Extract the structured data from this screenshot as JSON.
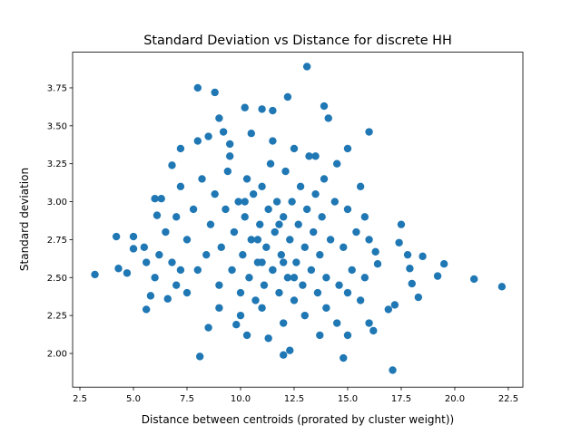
{
  "chart_data": {
    "type": "scatter",
    "title": "Standard Deviation vs Distance for discrete HH",
    "xlabel": "Distance between centroids (prorated by cluster weight))",
    "ylabel": "Standard deviation",
    "color": "#1f77b4",
    "xlim": [
      2.16,
      23.18
    ],
    "ylim": [
      1.778,
      3.985
    ],
    "xticks": [
      2.5,
      {
        "value": 5,
        "label": "5.0"
      },
      7.5,
      {
        "value": 10,
        "label": "10.0"
      },
      12.5,
      {
        "value": 15,
        "label": "15.0"
      },
      17.5,
      {
        "value": 20,
        "label": "20.0"
      },
      22.5
    ],
    "yticks": [
      {
        "value": 2,
        "label": "2.00"
      },
      2.25,
      {
        "value": 2.5,
        "label": "2.50"
      },
      2.75,
      {
        "value": 3,
        "label": "3.00"
      },
      3.25,
      {
        "value": 3.5,
        "label": "3.50"
      },
      3.75
    ],
    "x": [
      3.2,
      4.2,
      4.3,
      4.7,
      5.0,
      5.0,
      5.6,
      5.6,
      5.8,
      6.0,
      6.3,
      6.1,
      6.6,
      6.8,
      7.2,
      8.0,
      8.1,
      8.8,
      8.5,
      9.0,
      9.2,
      9.5,
      10.2,
      11.0,
      11.5,
      12.2,
      13.1,
      13.9,
      16.0,
      14.1,
      12.0,
      12.3,
      11.3,
      10.3,
      14.8,
      17.1,
      17.5,
      17.4,
      17.8,
      18.5,
      19.2,
      19.5,
      20.9,
      22.2,
      18.3,
      17.2,
      16.2,
      16.0,
      15.6,
      15.0,
      13.7,
      8.5,
      9.8,
      7.0,
      7.5,
      15.8,
      16.4,
      18.0,
      17.9,
      16.9,
      16.0,
      16.3,
      7.5,
      7.8,
      8.0,
      8.2,
      8.4,
      8.6,
      8.8,
      9.0,
      9.1,
      9.3,
      9.4,
      9.6,
      9.7,
      9.9,
      10.0,
      10.1,
      10.2,
      10.3,
      10.4,
      10.5,
      10.6,
      10.7,
      10.8,
      10.9,
      11.0,
      11.1,
      11.2,
      11.3,
      11.4,
      11.5,
      11.6,
      11.7,
      11.8,
      11.9,
      12.0,
      12.1,
      12.2,
      12.3,
      12.4,
      12.5,
      12.6,
      12.7,
      12.8,
      12.9,
      13.0,
      13.1,
      13.2,
      13.3,
      13.4,
      13.5,
      13.6,
      13.7,
      13.8,
      13.9,
      14.0,
      14.2,
      14.4,
      14.6,
      14.8,
      15.0,
      15.2,
      15.4,
      15.6,
      15.8,
      8.0,
      9.5,
      10.5,
      11.5,
      12.5,
      13.5,
      14.5,
      15.0,
      6.5,
      6.8,
      7.0,
      7.2,
      6.2,
      5.5,
      6.0,
      7.2,
      9.0,
      10.0,
      11.0,
      12.0,
      13.0,
      14.0,
      15.0,
      14.5,
      11.5,
      11.0,
      10.8,
      12.0,
      12.5,
      11.8,
      10.2
    ],
    "values": [
      2.52,
      2.77,
      2.56,
      2.53,
      2.77,
      2.69,
      2.29,
      2.6,
      2.38,
      3.02,
      3.02,
      2.91,
      2.36,
      3.24,
      3.35,
      3.75,
      1.98,
      3.72,
      3.43,
      3.55,
      3.46,
      3.38,
      3.62,
      3.61,
      3.6,
      3.69,
      3.89,
      3.63,
      3.46,
      3.55,
      1.99,
      2.02,
      2.1,
      2.12,
      1.97,
      1.89,
      2.85,
      2.73,
      2.65,
      2.64,
      2.51,
      2.59,
      2.49,
      2.44,
      2.37,
      2.32,
      2.15,
      2.2,
      2.35,
      2.12,
      2.12,
      2.17,
      2.19,
      2.45,
      2.4,
      2.9,
      2.59,
      2.46,
      2.56,
      2.29,
      2.75,
      2.67,
      2.75,
      2.95,
      2.55,
      3.15,
      2.65,
      2.85,
      3.05,
      2.45,
      2.7,
      2.95,
      3.2,
      2.55,
      2.8,
      3.0,
      2.4,
      2.65,
      2.9,
      3.15,
      2.5,
      2.75,
      3.05,
      2.35,
      2.6,
      2.85,
      3.1,
      2.45,
      2.7,
      2.95,
      3.25,
      2.55,
      2.8,
      3.0,
      2.4,
      2.65,
      2.9,
      3.2,
      2.5,
      2.75,
      3.0,
      2.35,
      2.6,
      2.85,
      3.1,
      2.45,
      2.7,
      2.95,
      3.3,
      2.55,
      2.8,
      3.05,
      2.4,
      2.65,
      2.9,
      3.15,
      2.5,
      2.75,
      3.0,
      2.45,
      2.7,
      2.95,
      2.55,
      2.8,
      3.1,
      2.5,
      3.4,
      3.3,
      3.45,
      3.4,
      3.35,
      3.3,
      3.25,
      3.35,
      2.8,
      2.6,
      2.9,
      3.1,
      2.65,
      2.7,
      2.5,
      2.55,
      2.3,
      2.25,
      2.3,
      2.2,
      2.25,
      2.3,
      2.4,
      2.2,
      2.55,
      2.6,
      2.75,
      2.6,
      2.5,
      2.85,
      3.0
    ]
  }
}
